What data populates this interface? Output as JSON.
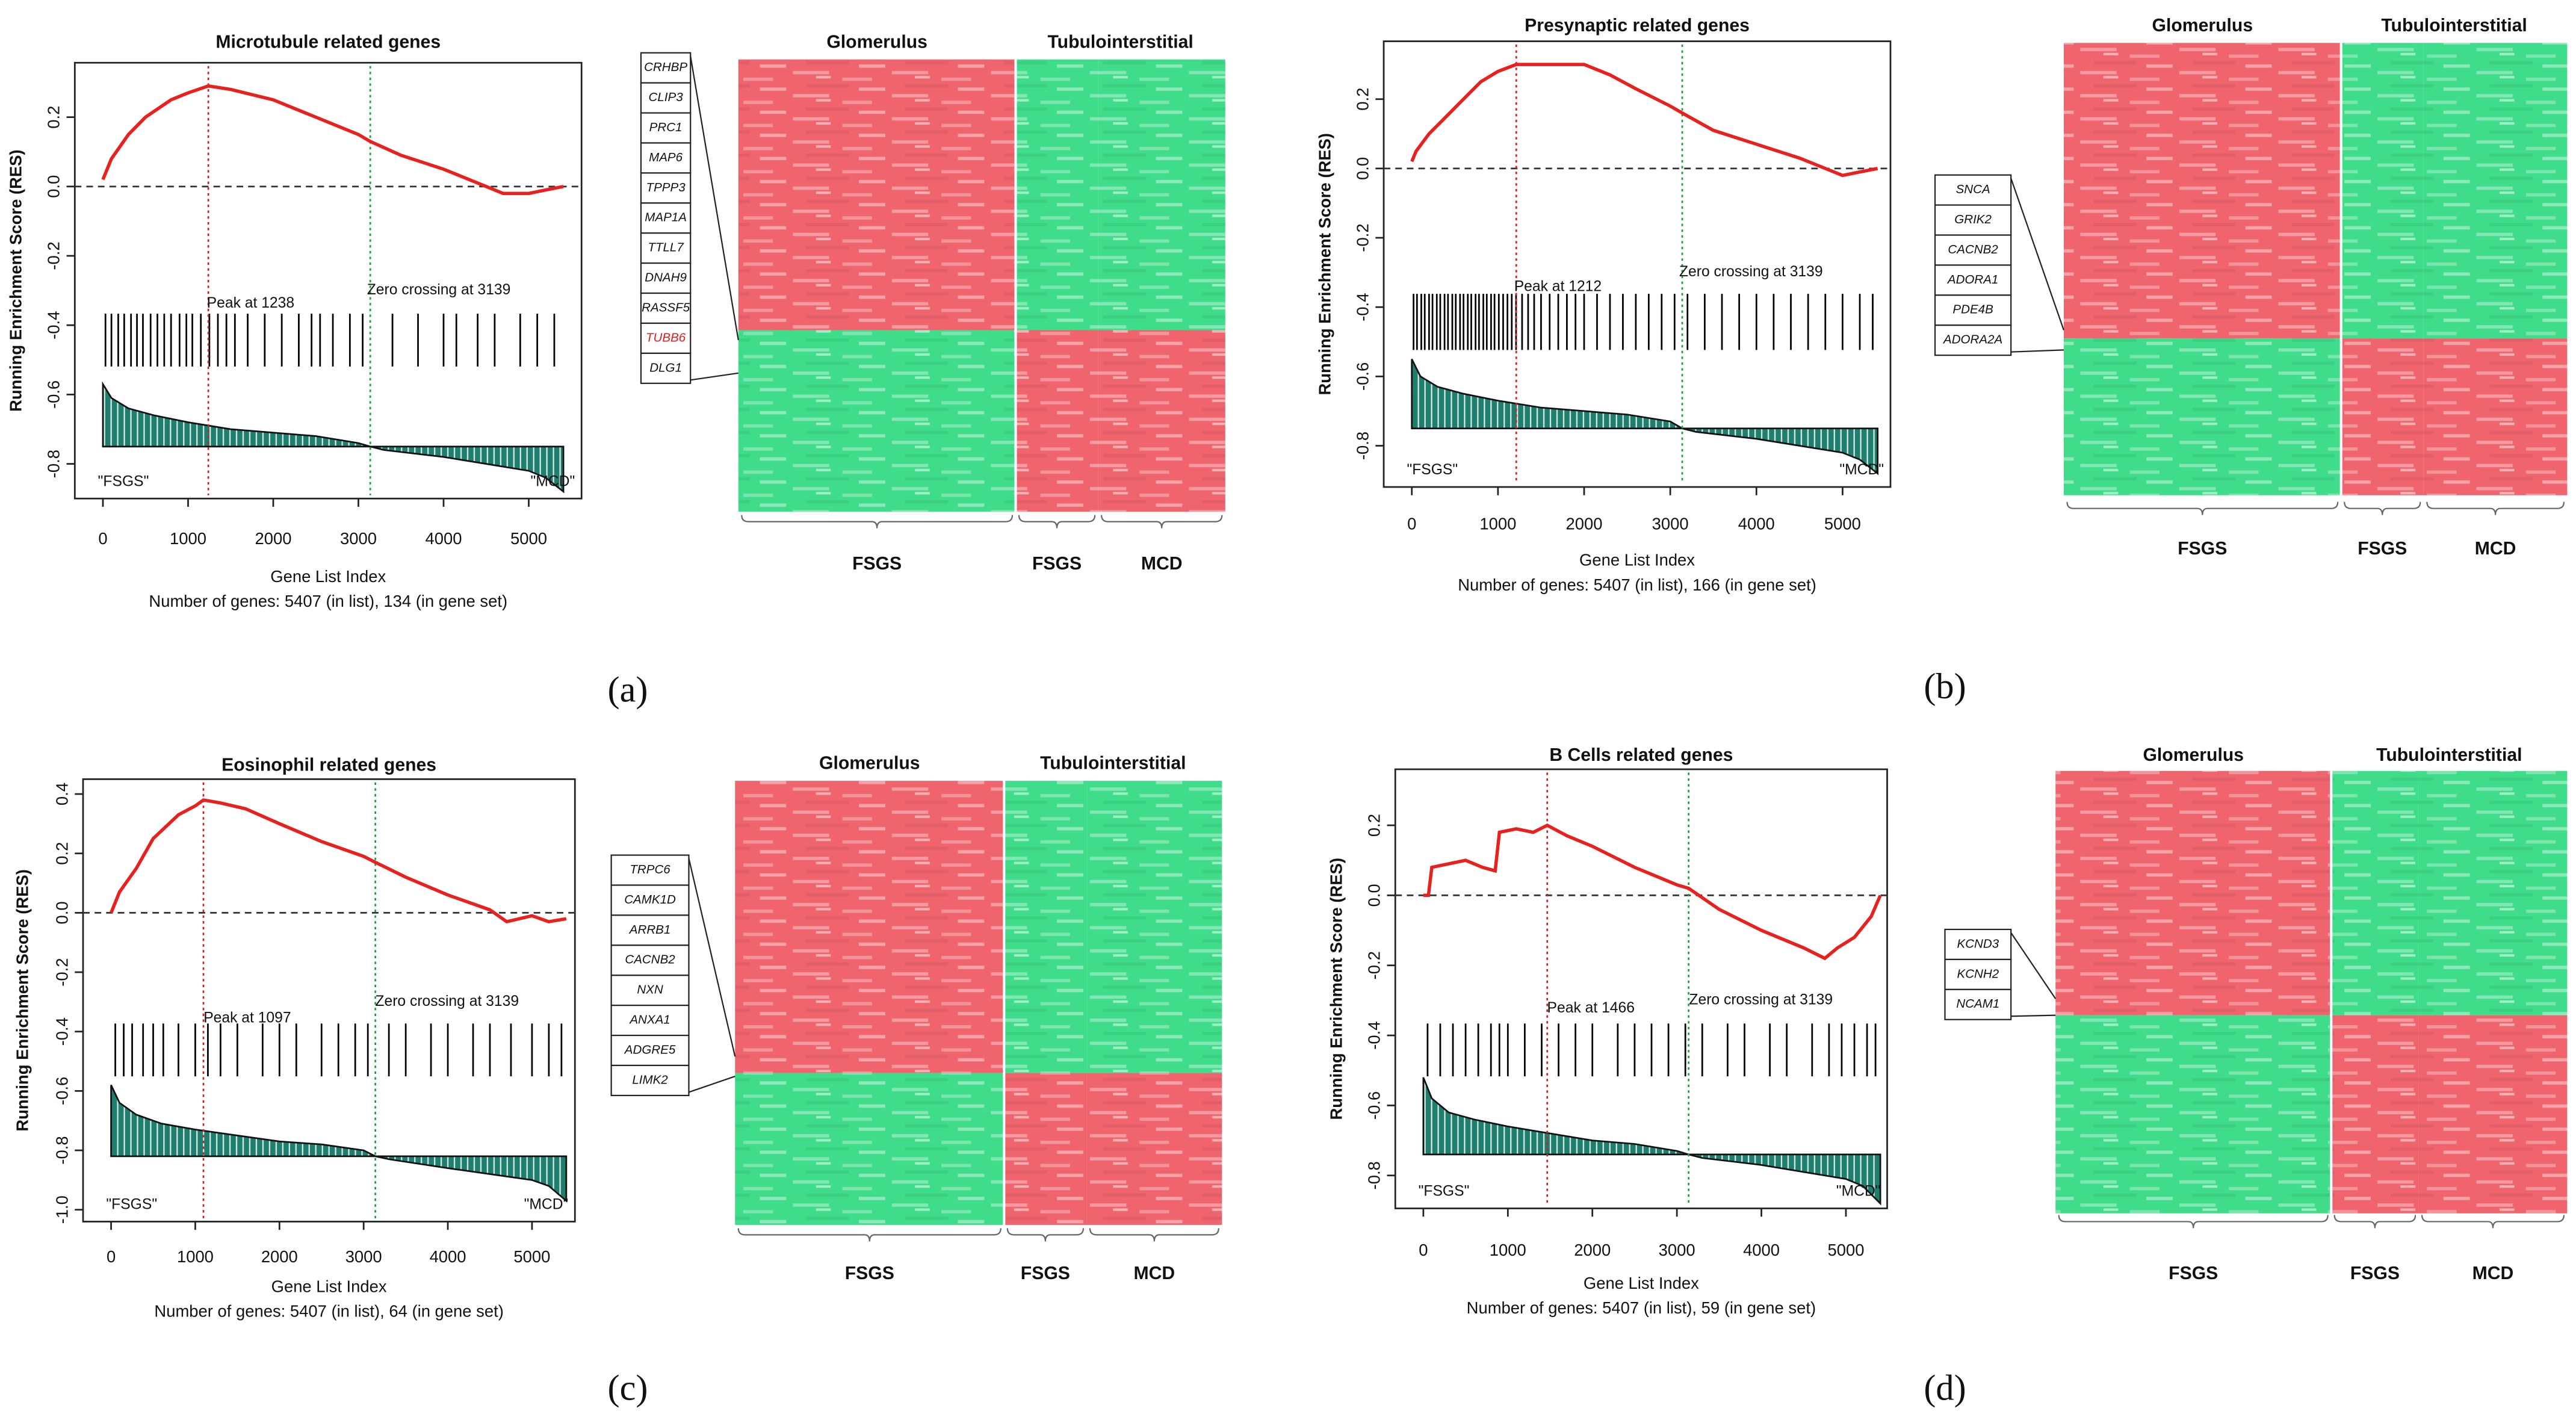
{
  "panels": [
    "(a)",
    "(b)",
    "(c)",
    "(d)"
  ],
  "chart_data": [
    {
      "type": "line",
      "title": "Microtubule related genes",
      "x_label": "Gene List Index",
      "y_label": "Running Enrichment Score (RES)",
      "caption": "Number of genes: 5407 (in list), 134 (in gene set)",
      "xlim": [
        -330,
        5620
      ],
      "ylim": [
        -0.9,
        0.357
      ],
      "xticks": [
        0,
        1000,
        2000,
        3000,
        4000,
        5000
      ],
      "yticks": [
        0.2,
        {
          "value": 0,
          "label": "0.0"
        },
        -0.2,
        -0.4,
        -0.6,
        -0.8
      ],
      "hline": 0,
      "color": "#e8201e",
      "x": [
        0,
        100,
        300,
        500,
        800,
        1000,
        1238,
        1500,
        2000,
        2500,
        3000,
        3139,
        3500,
        4000,
        4500,
        4700,
        5000,
        5200,
        5407
      ],
      "values": [
        0.02,
        0.08,
        0.15,
        0.2,
        0.25,
        0.27,
        0.29,
        0.28,
        0.25,
        0.2,
        0.15,
        0.13,
        0.09,
        0.05,
        0.0,
        -0.02,
        -0.02,
        -0.01,
        0.0
      ],
      "hits": [
        30,
        100,
        180,
        250,
        330,
        400,
        470,
        560,
        640,
        720,
        800,
        900,
        980,
        1050,
        1150,
        1250,
        1350,
        1450,
        1550,
        1700,
        1900,
        2100,
        2300,
        2450,
        2550,
        2700,
        2900,
        3050,
        3400,
        3700,
        4000,
        4150,
        4400,
        4600,
        4900,
        5100,
        5300
      ],
      "ranked_metric": {
        "baseline": -0.75,
        "x": [
          0,
          100,
          300,
          600,
          1000,
          1500,
          2000,
          2500,
          3000,
          3139,
          3300,
          4000,
          4500,
          5000,
          5200,
          5407
        ],
        "values": [
          -0.57,
          -0.61,
          -0.64,
          -0.66,
          -0.68,
          -0.7,
          -0.71,
          -0.72,
          -0.74,
          -0.75,
          -0.76,
          -0.78,
          -0.8,
          -0.82,
          -0.84,
          -0.88
        ]
      },
      "peak": 1238,
      "peak_label": "Peak at 1238",
      "zero_crossing": 3139,
      "zero_label": "Zero crossing at 3139",
      "end_labels": [
        "\"FSGS\"",
        "\"MCD\""
      ]
    },
    {
      "type": "heatmap",
      "groups": [
        "Glomerulus",
        "Tubulointerstitial"
      ],
      "columns": [
        "FSGS",
        "FSGS",
        "MCD"
      ],
      "values": [
        [
          1,
          -1,
          -1
        ],
        [
          -1,
          1,
          1
        ]
      ],
      "colors": {
        "high": "#f0646e",
        "low": "#3fdc8a"
      },
      "genes": [
        "CRHBP",
        "CLIP3",
        "PRC1",
        "MAP6",
        "TPPP3",
        "MAP1A",
        "TTLL7",
        "DNAH9",
        "RASSF5",
        "TUBB6",
        "DLG1"
      ],
      "highlight": [
        "TUBB6"
      ],
      "highlight_color": "#e02020"
    },
    {
      "type": "line",
      "title": "Presynaptic related genes",
      "x_label": "Gene List Index",
      "y_label": "Running Enrichment Score (RES)",
      "caption": "Number of genes: 5407 (in list), 166 (in gene set)",
      "xlim": [
        -326,
        5556
      ],
      "ylim": [
        -0.919,
        0.367
      ],
      "xticks": [
        0,
        1000,
        2000,
        3000,
        4000,
        5000
      ],
      "yticks": [
        0.2,
        {
          "value": 0,
          "label": "0.0"
        },
        -0.2,
        -0.4,
        -0.6,
        -0.8
      ],
      "hline": 0,
      "color": "#e8201e",
      "x": [
        0,
        50,
        200,
        400,
        600,
        800,
        1000,
        1212,
        1500,
        1800,
        2000,
        2300,
        2600,
        3000,
        3139,
        3500,
        4000,
        4500,
        4800,
        5000,
        5200,
        5407
      ],
      "values": [
        0.02,
        0.05,
        0.1,
        0.15,
        0.2,
        0.25,
        0.28,
        0.3,
        0.3,
        0.3,
        0.3,
        0.27,
        0.23,
        0.18,
        0.16,
        0.11,
        0.07,
        0.03,
        0.0,
        -0.02,
        -0.01,
        0.0
      ],
      "hits": [
        20,
        60,
        110,
        150,
        200,
        240,
        290,
        330,
        380,
        420,
        470,
        510,
        560,
        600,
        650,
        690,
        740,
        780,
        830,
        870,
        920,
        960,
        1010,
        1060,
        1110,
        1160,
        1210,
        1280,
        1350,
        1420,
        1500,
        1600,
        1700,
        1800,
        1900,
        2000,
        2150,
        2300,
        2450,
        2600,
        2750,
        2900,
        3050,
        3200,
        3400,
        3600,
        3800,
        4000,
        4200,
        4400,
        4600,
        4800,
        5000,
        5200,
        5350
      ],
      "ranked_metric": {
        "baseline": -0.75,
        "x": [
          0,
          100,
          300,
          600,
          1000,
          1500,
          2000,
          2500,
          3000,
          3139,
          3300,
          4000,
          4500,
          5000,
          5200,
          5407
        ],
        "values": [
          -0.55,
          -0.6,
          -0.63,
          -0.65,
          -0.67,
          -0.69,
          -0.7,
          -0.71,
          -0.73,
          -0.75,
          -0.76,
          -0.78,
          -0.8,
          -0.82,
          -0.84,
          -0.88
        ]
      },
      "peak": 1212,
      "peak_label": "Peak at 1212",
      "zero_crossing": 3139,
      "zero_label": "Zero crossing at 3139",
      "end_labels": [
        "\"FSGS\"",
        "\"MCD\""
      ]
    },
    {
      "type": "heatmap",
      "groups": [
        "Glomerulus",
        "Tubulointerstitial"
      ],
      "columns": [
        "FSGS",
        "FSGS",
        "MCD"
      ],
      "values": [
        [
          1,
          -1,
          -1
        ],
        [
          -1,
          1,
          1
        ]
      ],
      "colors": {
        "high": "#f0646e",
        "low": "#3fdc8a"
      },
      "genes": [
        "SNCA",
        "GRIK2",
        "CACNB2",
        "ADORA1",
        "PDE4B",
        "ADORA2A"
      ],
      "highlight": [],
      "highlight_color": "#e02020"
    },
    {
      "type": "line",
      "title": "Eosinophil related genes",
      "x_label": "Gene List Index",
      "y_label": "Running Enrichment Score (RES)",
      "caption": "Number of genes: 5407 (in list), 64 (in gene set)",
      "xlim": [
        -333,
        5510
      ],
      "ylim": [
        -1.04,
        0.45
      ],
      "xticks": [
        0,
        1000,
        2000,
        3000,
        4000,
        5000
      ],
      "yticks": [
        0.4,
        0.2,
        {
          "value": 0,
          "label": "0.0"
        },
        -0.2,
        -0.4,
        -0.6,
        -0.8,
        {
          "value": -1,
          "label": "-1.0"
        }
      ],
      "hline": 0,
      "color": "#e8201e",
      "x": [
        0,
        100,
        300,
        500,
        800,
        1000,
        1097,
        1300,
        1600,
        2000,
        2500,
        3000,
        3139,
        3500,
        4000,
        4500,
        4700,
        5000,
        5200,
        5407
      ],
      "values": [
        0.0,
        0.07,
        0.15,
        0.25,
        0.33,
        0.36,
        0.38,
        0.37,
        0.35,
        0.3,
        0.24,
        0.19,
        0.17,
        0.12,
        0.06,
        0.01,
        -0.03,
        -0.01,
        -0.03,
        -0.02
      ],
      "hits": [
        50,
        150,
        250,
        380,
        500,
        620,
        800,
        1000,
        1150,
        1300,
        1500,
        1800,
        2000,
        2200,
        2500,
        2700,
        2900,
        3050,
        3300,
        3500,
        3800,
        4000,
        4300,
        4500,
        4750,
        5000,
        5200,
        5350
      ],
      "ranked_metric": {
        "baseline": -0.82,
        "x": [
          0,
          100,
          300,
          600,
          1000,
          1500,
          2000,
          2500,
          3000,
          3139,
          3300,
          4000,
          4500,
          5000,
          5200,
          5407
        ],
        "values": [
          -0.58,
          -0.64,
          -0.68,
          -0.71,
          -0.73,
          -0.75,
          -0.77,
          -0.78,
          -0.8,
          -0.82,
          -0.83,
          -0.86,
          -0.88,
          -0.9,
          -0.92,
          -0.97
        ]
      },
      "peak": 1097,
      "peak_label": "Peak at 1097",
      "zero_crossing": 3139,
      "zero_label": "Zero crossing at 3139",
      "end_labels": [
        "\"FSGS\"",
        "\"MCD\""
      ]
    },
    {
      "type": "heatmap",
      "groups": [
        "Glomerulus",
        "Tubulointerstitial"
      ],
      "columns": [
        "FSGS",
        "FSGS",
        "MCD"
      ],
      "values": [
        [
          1,
          -1,
          -1
        ],
        [
          -1,
          1,
          1
        ]
      ],
      "colors": {
        "high": "#f0646e",
        "low": "#3fdc8a"
      },
      "genes": [
        "TRPC6",
        "CAMK1D",
        "ARRB1",
        "CACNB2",
        "NXN",
        "ANXA1",
        "ADGRE5",
        "LIMK2"
      ],
      "highlight": [],
      "highlight_color": "#e02020"
    },
    {
      "type": "line",
      "title": "B Cells related genes",
      "x_label": "Gene List Index",
      "y_label": "Running Enrichment Score (RES)",
      "caption": "Number of genes: 5407 (in list), 59 (in gene set)",
      "xlim": [
        -332,
        5488
      ],
      "ylim": [
        -0.894,
        0.36
      ],
      "xticks": [
        0,
        1000,
        2000,
        3000,
        4000,
        5000
      ],
      "yticks": [
        0.2,
        {
          "value": 0,
          "label": "0.0"
        },
        -0.2,
        -0.4,
        -0.6,
        -0.8
      ],
      "hline": 0,
      "color": "#e8201e",
      "x": [
        0,
        60,
        100,
        300,
        500,
        700,
        850,
        900,
        1100,
        1300,
        1466,
        1700,
        2000,
        2500,
        3000,
        3139,
        3500,
        4000,
        4500,
        4750,
        4900,
        5100,
        5300,
        5407
      ],
      "values": [
        0.0,
        0.0,
        0.08,
        0.09,
        0.1,
        0.08,
        0.07,
        0.18,
        0.19,
        0.18,
        0.2,
        0.17,
        0.14,
        0.08,
        0.03,
        0.02,
        -0.04,
        -0.1,
        -0.15,
        -0.18,
        -0.15,
        -0.12,
        -0.06,
        0.0
      ],
      "hits": [
        50,
        200,
        350,
        500,
        650,
        800,
        900,
        1000,
        1200,
        1400,
        1600,
        1800,
        2000,
        2300,
        2500,
        2700,
        2900,
        3100,
        3300,
        3600,
        3800,
        4100,
        4300,
        4600,
        4800,
        4950,
        5100,
        5250,
        5350
      ],
      "ranked_metric": {
        "baseline": -0.74,
        "x": [
          0,
          100,
          300,
          600,
          1000,
          1500,
          2000,
          2500,
          3000,
          3139,
          3300,
          4000,
          4500,
          5000,
          5200,
          5407
        ],
        "values": [
          -0.52,
          -0.58,
          -0.62,
          -0.64,
          -0.66,
          -0.68,
          -0.7,
          -0.71,
          -0.73,
          -0.74,
          -0.75,
          -0.77,
          -0.79,
          -0.81,
          -0.83,
          -0.88
        ]
      },
      "peak": 1466,
      "peak_label": "Peak at 1466",
      "zero_crossing": 3139,
      "zero_label": "Zero crossing at 3139",
      "end_labels": [
        "\"FSGS\"",
        "\"MCD\""
      ]
    },
    {
      "type": "heatmap",
      "groups": [
        "Glomerulus",
        "Tubulointerstitial"
      ],
      "columns": [
        "FSGS",
        "FSGS",
        "MCD"
      ],
      "values": [
        [
          1,
          -1,
          -1
        ],
        [
          -1,
          1,
          1
        ]
      ],
      "colors": {
        "high": "#f0646e",
        "low": "#3fdc8a"
      },
      "genes": [
        "KCND3",
        "KCNH2",
        "NCAM1"
      ],
      "highlight": [],
      "highlight_color": "#e02020"
    }
  ]
}
